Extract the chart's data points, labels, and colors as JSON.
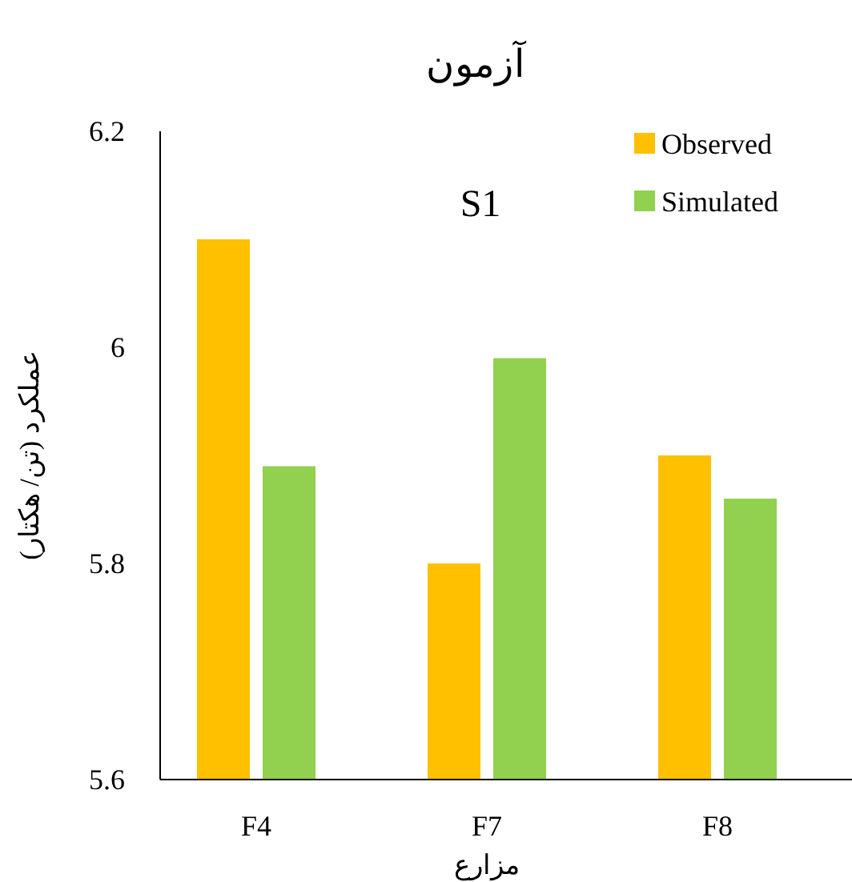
{
  "chart_data": {
    "type": "bar",
    "title": "آزمون",
    "xlabel": "مزارع",
    "ylabel": "عملکرد (تن/ هکتار)",
    "annotations": [
      "S1"
    ],
    "categories": [
      "F4",
      "F7",
      "F8"
    ],
    "series": [
      {
        "name": "Observed",
        "color": "#ffc000",
        "values": [
          6.1,
          5.8,
          5.9
        ]
      },
      {
        "name": "Simulated",
        "color": "#92d050",
        "values": [
          5.89,
          5.99,
          5.86
        ]
      }
    ],
    "ylim": [
      5.6,
      6.2
    ],
    "yticks": [
      5.6,
      5.8,
      6,
      6.2
    ],
    "legend": "top right"
  }
}
